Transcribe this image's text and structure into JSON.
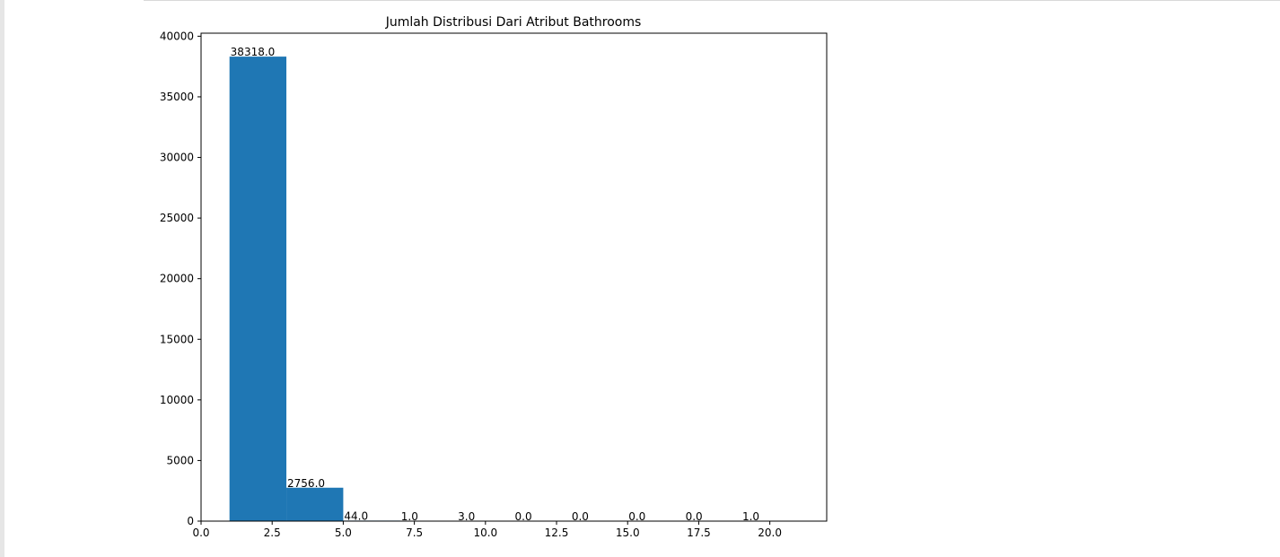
{
  "chart_data": {
    "type": "bar",
    "title": "Jumlah Distribusi Dari Atribut Bathrooms",
    "xlabel": "",
    "ylabel": "",
    "xlim": [
      0,
      22
    ],
    "ylim": [
      0,
      40250
    ],
    "bin_edges": [
      1,
      3,
      5,
      7,
      9,
      11,
      13,
      15,
      17,
      19,
      21
    ],
    "values": [
      38318,
      2756,
      44,
      1,
      3,
      0,
      0,
      0,
      0,
      1
    ],
    "data_labels": [
      "38318.0",
      "2756.0",
      "44.0",
      "1.0",
      "3.0",
      "0.0",
      "0.0",
      "0.0",
      "0.0",
      "1.0"
    ],
    "x_ticks": [
      0,
      2.5,
      5,
      7.5,
      10,
      12.5,
      15,
      17.5,
      20
    ],
    "x_tick_labels": [
      "0.0",
      "2.5",
      "5.0",
      "7.5",
      "10.0",
      "12.5",
      "15.0",
      "17.5",
      "20.0"
    ],
    "y_ticks": [
      0,
      5000,
      10000,
      15000,
      20000,
      25000,
      30000,
      35000,
      40000
    ],
    "y_tick_labels": [
      "0",
      "5000",
      "10000",
      "15000",
      "20000",
      "25000",
      "30000",
      "35000",
      "40000"
    ],
    "bar_color": "#1f77b4",
    "grid": false
  }
}
